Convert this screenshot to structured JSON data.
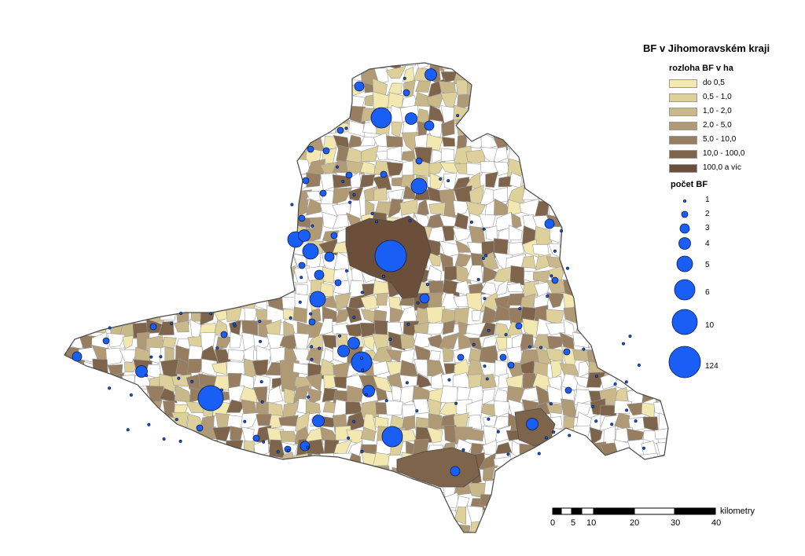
{
  "legend": {
    "title": "BF v Jihomoravském kraji",
    "area_heading": "rozloha BF v ha",
    "area_classes": [
      {
        "label": "do 0,5",
        "color": "#f3e9b0"
      },
      {
        "label": "0,5 - 1,0",
        "color": "#ddd09a"
      },
      {
        "label": "1,0 - 2,0",
        "color": "#c9b88a"
      },
      {
        "label": "2,0 - 5,0",
        "color": "#b09a76"
      },
      {
        "label": "5,0 - 10,0",
        "color": "#977e60"
      },
      {
        "label": "10,0 - 100,0",
        "color": "#7d644a"
      },
      {
        "label": "100,0 a víc",
        "color": "#6b4f3a"
      }
    ],
    "count_heading": "počet BF",
    "count_classes": [
      {
        "label": "1",
        "value": 1
      },
      {
        "label": "2",
        "value": 2
      },
      {
        "label": "3",
        "value": 3
      },
      {
        "label": "4",
        "value": 4
      },
      {
        "label": "5",
        "value": 5
      },
      {
        "label": "6",
        "value": 6
      },
      {
        "label": "10",
        "value": 10
      },
      {
        "label": "124",
        "value": 124
      }
    ]
  },
  "scalebar": {
    "unit": "kilometry",
    "labels": [
      "0",
      "5",
      "10",
      "20",
      "30",
      "40"
    ]
  },
  "colors": {
    "circle_fill": "#1a5ff5",
    "circle_stroke": "#0a1c4a",
    "region_outline": "#4a4a4a",
    "boundary": "#9a9a9a",
    "no_data": "#ffffff"
  }
}
